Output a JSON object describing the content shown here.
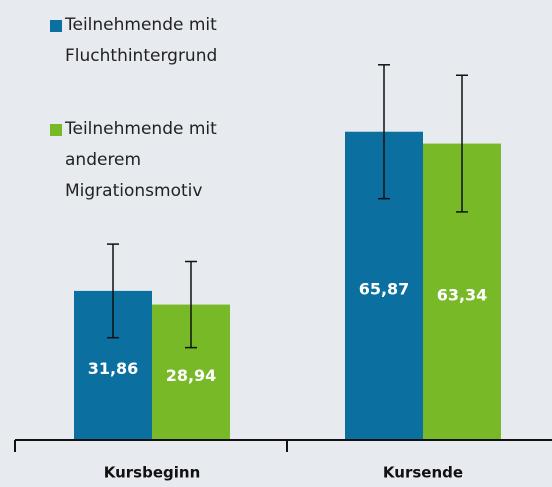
{
  "chart_data": {
    "type": "bar",
    "categories": [
      "Kursbeginn",
      "Kursende"
    ],
    "series": [
      {
        "name": "Teilnehmende mit Fluchthintergrund",
        "color": "#0b6f9f",
        "values": [
          31.86,
          65.87
        ],
        "value_labels": [
          "31,86",
          "65,87"
        ],
        "errors": [
          10.0,
          14.3
        ]
      },
      {
        "name": "Teilnehmende mit anderem Migrationsmotiv",
        "color": "#78b928",
        "values": [
          28.94,
          63.34
        ],
        "value_labels": [
          "28,94",
          "63,34"
        ],
        "errors": [
          9.2,
          14.6
        ]
      }
    ]
  }
}
